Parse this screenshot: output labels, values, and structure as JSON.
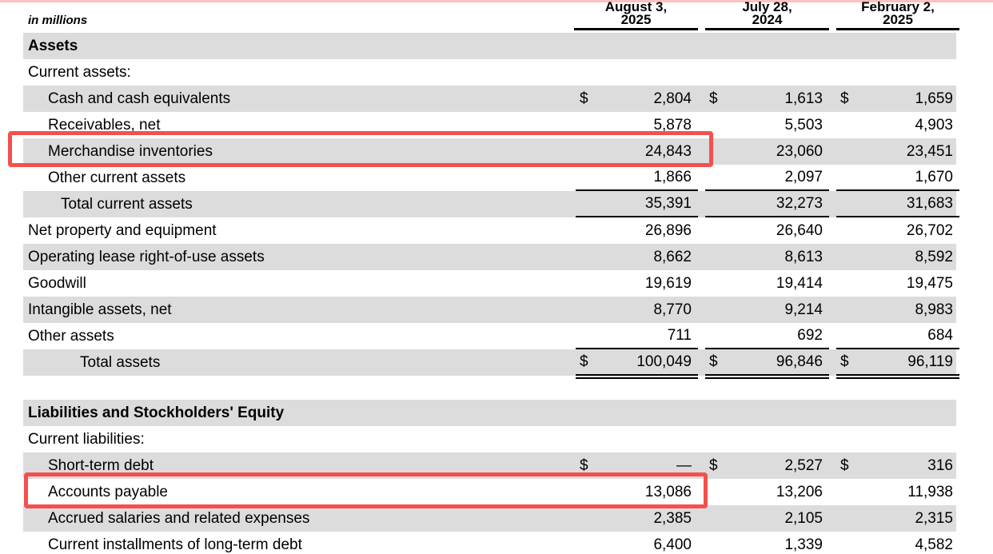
{
  "page": {
    "units_label": "in millions",
    "accent_red": "#f4504d",
    "row_gray_color": "#dcdcdc"
  },
  "columns": [
    {
      "line1": "August 3,",
      "line2": "2025"
    },
    {
      "line1": "July 28,",
      "line2": "2024"
    },
    {
      "line1": "February 2,",
      "line2": "2025"
    }
  ],
  "rows": [
    {
      "type": "section",
      "label": "Assets"
    },
    {
      "type": "plain",
      "label": "Current assets:"
    },
    {
      "label": "Cash and cash equivalents",
      "currency": "$",
      "values": [
        "2,804",
        "1,613",
        "1,659"
      ]
    },
    {
      "label": "Receivables, net",
      "values": [
        "5,878",
        "5,503",
        "4,903"
      ]
    },
    {
      "label": "Merchandise inventories",
      "values": [
        "24,843",
        "23,060",
        "23,451"
      ]
    },
    {
      "label": "Other current assets",
      "values": [
        "1,866",
        "2,097",
        "1,670"
      ]
    },
    {
      "label": "Total current assets",
      "values": [
        "35,391",
        "32,273",
        "31,683"
      ]
    },
    {
      "label": "Net property and equipment",
      "values": [
        "26,896",
        "26,640",
        "26,702"
      ]
    },
    {
      "label": "Operating lease right-of-use assets",
      "values": [
        "8,662",
        "8,613",
        "8,592"
      ]
    },
    {
      "label": "Goodwill",
      "values": [
        "19,619",
        "19,414",
        "19,475"
      ]
    },
    {
      "label": "Intangible assets, net",
      "values": [
        "8,770",
        "9,214",
        "8,983"
      ]
    },
    {
      "label": "Other assets",
      "values": [
        "711",
        "692",
        "684"
      ]
    },
    {
      "label": "Total assets",
      "currency": "$",
      "values": [
        "100,049",
        "96,846",
        "96,119"
      ]
    },
    {
      "type": "section",
      "label": "Liabilities and Stockholders' Equity"
    },
    {
      "type": "plain",
      "label": "Current liabilities:"
    },
    {
      "label": "Short-term debt",
      "currency": "$",
      "values": [
        "—",
        "2,527",
        "316"
      ]
    },
    {
      "label": "Accounts payable",
      "values": [
        "13,086",
        "13,206",
        "11,938"
      ]
    },
    {
      "label": "Accrued salaries and related expenses",
      "values": [
        "2,385",
        "2,105",
        "2,315"
      ]
    },
    {
      "label": "Current installments of long-term debt",
      "values": [
        "6,400",
        "1,339",
        "4,582"
      ]
    }
  ],
  "highlights": [
    {
      "target_row": "Merchandise inventories",
      "highlighted_value": "24,843"
    },
    {
      "target_row": "Accounts payable",
      "highlighted_value": "13,086"
    }
  ]
}
